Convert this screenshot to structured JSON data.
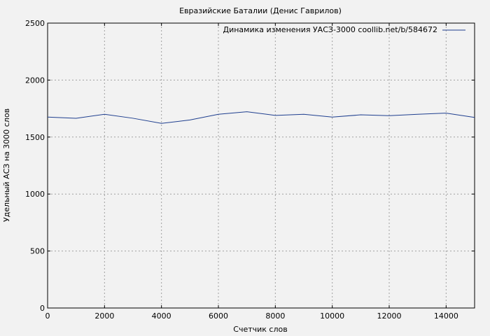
{
  "chart_data": {
    "type": "line",
    "title": "Евразийские Баталии (Денис Гаврилов)",
    "xlabel": "Счетчик слов",
    "ylabel": "Удельный АСЗ на 3000 слов",
    "xlim": [
      0,
      15000
    ],
    "ylim": [
      0,
      2500
    ],
    "x_ticks": [
      0,
      2000,
      4000,
      6000,
      8000,
      10000,
      12000,
      14000
    ],
    "y_ticks": [
      0,
      500,
      1000,
      1500,
      2000,
      2500
    ],
    "grid": true,
    "legend_position": "top-right",
    "series": [
      {
        "name": "Динамика изменения УАСЗ-3000 coollib.net/b/584672",
        "color": "#1f3f8f",
        "x": [
          0,
          1000,
          2000,
          3000,
          4000,
          5000,
          6000,
          7000,
          8000,
          9000,
          10000,
          11000,
          12000,
          13000,
          14000,
          15000
        ],
        "y": [
          1675,
          1665,
          1700,
          1665,
          1620,
          1650,
          1700,
          1722,
          1690,
          1700,
          1675,
          1695,
          1688,
          1700,
          1710,
          1672
        ]
      }
    ]
  }
}
